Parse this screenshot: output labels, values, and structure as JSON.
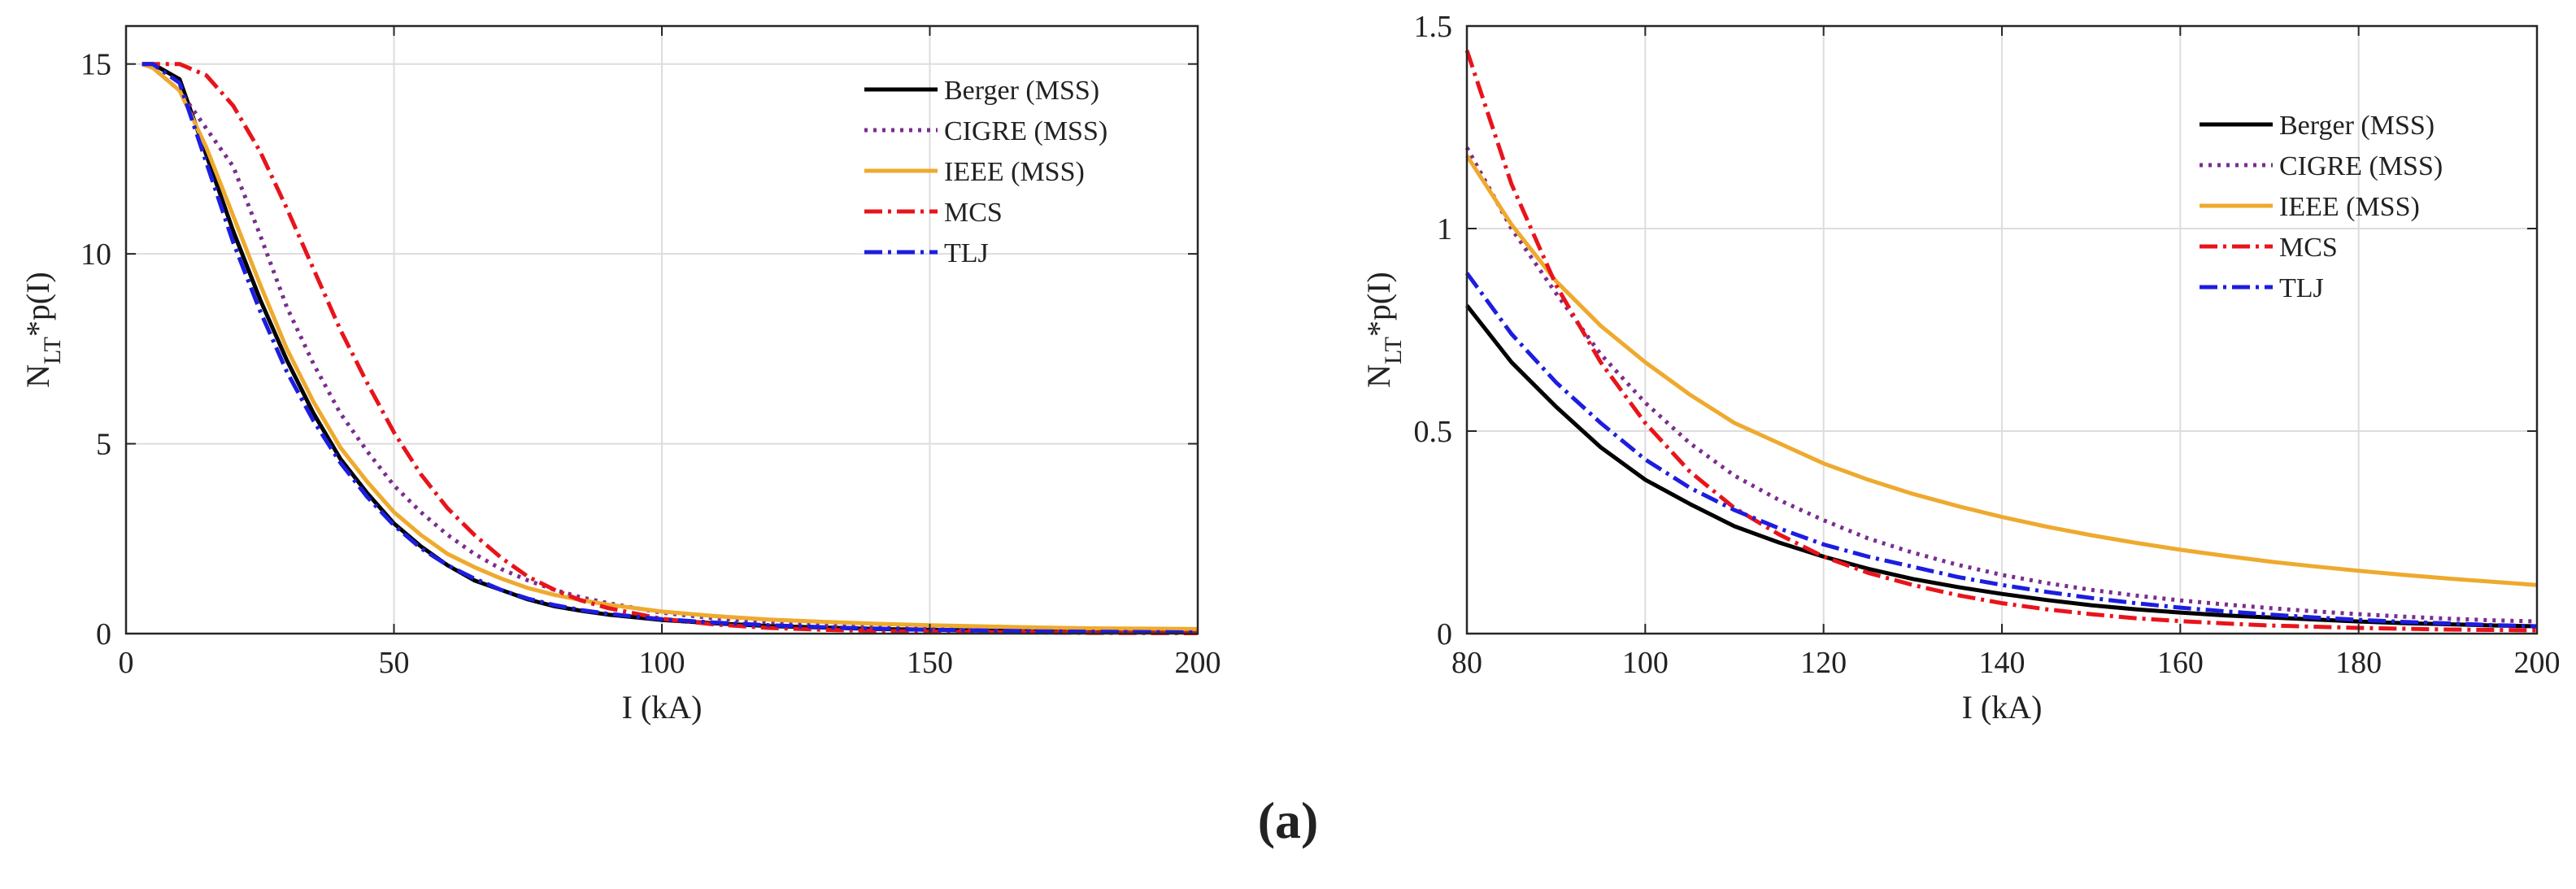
{
  "caption": "(a)",
  "chart_data": [
    {
      "type": "line",
      "id": "left",
      "xlabel": "I (kA)",
      "ylabel_main": "N",
      "ylabel_sub": "LT",
      "ylabel_rest": "*p(I)",
      "xlim": [
        0,
        200
      ],
      "ylim": [
        0,
        16
      ],
      "xticks": [
        0,
        50,
        100,
        150,
        200
      ],
      "yticks": [
        0,
        5,
        10,
        15
      ],
      "grid": true,
      "legend_position": "top-right",
      "x": [
        3,
        5,
        10,
        15,
        20,
        25,
        30,
        35,
        40,
        45,
        50,
        55,
        60,
        65,
        70,
        75,
        80,
        85,
        90,
        100,
        110,
        120,
        130,
        140,
        150,
        160,
        170,
        180,
        190,
        200
      ],
      "series": [
        {
          "name": "Berger (MSS)",
          "color": "#000000",
          "dash": "",
          "values": [
            15.0,
            15.0,
            14.6,
            12.6,
            10.6,
            8.8,
            7.2,
            5.8,
            4.6,
            3.7,
            2.9,
            2.3,
            1.8,
            1.4,
            1.15,
            0.9,
            0.72,
            0.6,
            0.5,
            0.36,
            0.27,
            0.2,
            0.16,
            0.12,
            0.1,
            0.08,
            0.06,
            0.05,
            0.04,
            0.03
          ]
        },
        {
          "name": "CIGRE (MSS)",
          "color": "#7b2d8e",
          "dash": "4,7",
          "values": [
            15.0,
            14.9,
            14.3,
            13.3,
            12.3,
            10.5,
            8.6,
            7.1,
            5.8,
            4.8,
            3.9,
            3.2,
            2.6,
            2.1,
            1.7,
            1.4,
            1.15,
            0.95,
            0.8,
            0.55,
            0.4,
            0.3,
            0.22,
            0.17,
            0.13,
            0.1,
            0.08,
            0.06,
            0.05,
            0.04
          ]
        },
        {
          "name": "IEEE (MSS)",
          "color": "#eeaa2e",
          "dash": "",
          "values": [
            15.0,
            14.9,
            14.3,
            12.8,
            11.0,
            9.2,
            7.5,
            6.1,
            4.9,
            4.0,
            3.2,
            2.6,
            2.1,
            1.75,
            1.45,
            1.2,
            1.02,
            0.88,
            0.76,
            0.58,
            0.46,
            0.37,
            0.31,
            0.26,
            0.22,
            0.19,
            0.16,
            0.14,
            0.13,
            0.12
          ]
        },
        {
          "name": "MCS",
          "color": "#e8141b",
          "dash": "22,7,4,7",
          "values": [
            15.0,
            15.0,
            15.0,
            14.7,
            13.9,
            12.7,
            11.2,
            9.6,
            8.0,
            6.6,
            5.3,
            4.2,
            3.3,
            2.6,
            2.0,
            1.5,
            1.15,
            0.87,
            0.67,
            0.39,
            0.24,
            0.15,
            0.1,
            0.07,
            0.05,
            0.04,
            0.03,
            0.02,
            0.015,
            0.01
          ]
        },
        {
          "name": "TLJ",
          "color": "#1d1de0",
          "dash": "22,7,4,7",
          "values": [
            15.0,
            15.0,
            14.5,
            12.4,
            10.3,
            8.5,
            6.9,
            5.6,
            4.5,
            3.6,
            2.85,
            2.25,
            1.8,
            1.45,
            1.15,
            0.92,
            0.75,
            0.62,
            0.52,
            0.38,
            0.29,
            0.22,
            0.17,
            0.13,
            0.1,
            0.08,
            0.06,
            0.05,
            0.04,
            0.03
          ]
        }
      ]
    },
    {
      "type": "line",
      "id": "right",
      "xlabel": "I (kA)",
      "ylabel_main": "N",
      "ylabel_sub": "LT",
      "ylabel_rest": "*p(I)",
      "xlim": [
        80,
        200
      ],
      "ylim": [
        0,
        1.5
      ],
      "xticks": [
        80,
        100,
        120,
        140,
        160,
        180,
        200
      ],
      "yticks": [
        0,
        0.5,
        1,
        1.5
      ],
      "grid": true,
      "legend_position": "top-right",
      "x": [
        80,
        85,
        90,
        95,
        100,
        105,
        110,
        115,
        120,
        125,
        130,
        135,
        140,
        145,
        150,
        155,
        160,
        165,
        170,
        175,
        180,
        185,
        190,
        195,
        200
      ],
      "series": [
        {
          "name": "Berger (MSS)",
          "color": "#000000",
          "dash": "",
          "values": [
            0.81,
            0.67,
            0.56,
            0.46,
            0.38,
            0.32,
            0.265,
            0.225,
            0.19,
            0.16,
            0.135,
            0.115,
            0.098,
            0.083,
            0.07,
            0.06,
            0.052,
            0.045,
            0.04,
            0.035,
            0.03,
            0.026,
            0.023,
            0.02,
            0.018
          ]
        },
        {
          "name": "CIGRE (MSS)",
          "color": "#7b2d8e",
          "dash": "4,7",
          "values": [
            1.2,
            1.0,
            0.84,
            0.69,
            0.57,
            0.47,
            0.39,
            0.33,
            0.28,
            0.235,
            0.2,
            0.17,
            0.145,
            0.125,
            0.108,
            0.094,
            0.082,
            0.072,
            0.063,
            0.055,
            0.048,
            0.042,
            0.037,
            0.033,
            0.03
          ]
        },
        {
          "name": "IEEE (MSS)",
          "color": "#eeaa2e",
          "dash": "",
          "values": [
            1.18,
            1.01,
            0.87,
            0.76,
            0.67,
            0.59,
            0.52,
            0.47,
            0.42,
            0.38,
            0.345,
            0.315,
            0.288,
            0.264,
            0.243,
            0.224,
            0.207,
            0.192,
            0.178,
            0.166,
            0.155,
            0.145,
            0.136,
            0.128,
            0.12
          ]
        },
        {
          "name": "MCS",
          "color": "#e8141b",
          "dash": "22,7,4,7",
          "values": [
            1.44,
            1.11,
            0.86,
            0.67,
            0.52,
            0.4,
            0.31,
            0.245,
            0.19,
            0.15,
            0.12,
            0.095,
            0.075,
            0.06,
            0.048,
            0.038,
            0.031,
            0.025,
            0.02,
            0.017,
            0.014,
            0.012,
            0.01,
            0.009,
            0.008
          ]
        },
        {
          "name": "TLJ",
          "color": "#1d1de0",
          "dash": "22,7,4,7",
          "values": [
            0.89,
            0.74,
            0.62,
            0.52,
            0.43,
            0.36,
            0.305,
            0.26,
            0.22,
            0.19,
            0.165,
            0.14,
            0.12,
            0.103,
            0.088,
            0.075,
            0.064,
            0.055,
            0.047,
            0.04,
            0.034,
            0.029,
            0.025,
            0.021,
            0.018
          ]
        }
      ]
    }
  ]
}
